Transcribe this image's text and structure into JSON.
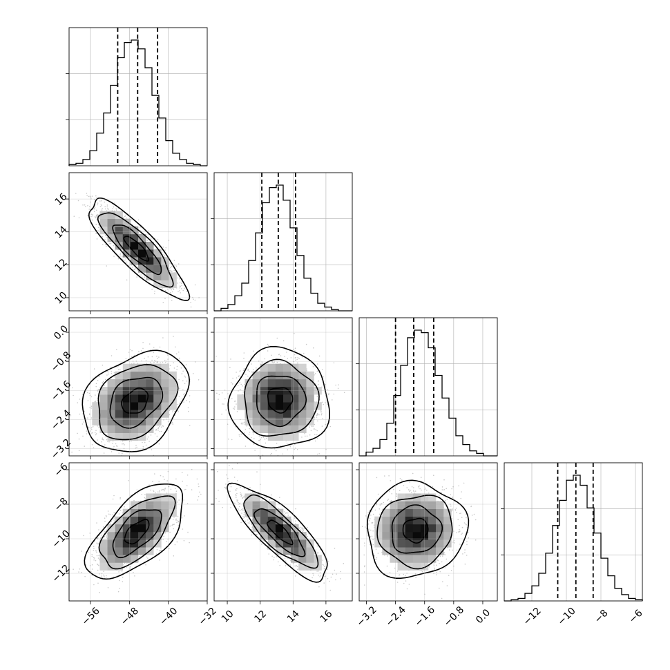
{
  "colors": {
    "ink": "#000000",
    "grid": "#b0b0b0",
    "scatter": "#9a9a9a"
  },
  "chart_data": {
    "type": "corner",
    "dims": [
      {
        "range": [
          -60.4,
          -32
        ],
        "ticks": [
          -56,
          -48,
          -40,
          -32
        ],
        "tick_labels": [
          "−56",
          "−48",
          "−40",
          "−32"
        ],
        "quantiles": [
          -50.4,
          -46.3,
          -42.2
        ],
        "hist_x": [
          -60.4,
          -58.98,
          -57.56,
          -56.14,
          -54.72,
          -53.3,
          -51.88,
          -50.46,
          -49.04,
          -47.62,
          -46.2,
          -44.78,
          -43.36,
          -41.94,
          -40.52,
          -39.1,
          -37.68,
          -36.26,
          -34.84,
          -33.42,
          -32
        ],
        "hist_y": [
          0.01,
          0.02,
          0.05,
          0.12,
          0.26,
          0.42,
          0.64,
          0.86,
          0.98,
          1.0,
          0.93,
          0.78,
          0.56,
          0.38,
          0.2,
          0.1,
          0.05,
          0.02,
          0.01,
          0.0
        ]
      },
      {
        "range": [
          9.2,
          17.6
        ],
        "ticks": [
          10,
          12,
          14,
          16
        ],
        "tick_labels": [
          "10",
          "12",
          "14",
          "16"
        ],
        "quantiles": [
          12.1,
          13.1,
          14.15
        ],
        "hist_x": [
          9.2,
          9.62,
          10.04,
          10.46,
          10.88,
          11.3,
          11.72,
          12.14,
          12.56,
          12.98,
          13.4,
          13.82,
          14.24,
          14.66,
          15.08,
          15.5,
          15.92,
          16.34,
          16.76,
          17.18,
          17.6
        ],
        "hist_y": [
          0.0,
          0.02,
          0.05,
          0.12,
          0.22,
          0.4,
          0.62,
          0.86,
          0.98,
          1.0,
          0.88,
          0.66,
          0.44,
          0.26,
          0.14,
          0.06,
          0.03,
          0.01,
          0.0,
          0.0
        ],
        "y_ticks": [
          10,
          12,
          14,
          16
        ],
        "y_tick_labels": [
          "10",
          "12",
          "14",
          "16"
        ]
      },
      {
        "range": [
          -3.4,
          0.4
        ],
        "ticks": [
          -3.2,
          -2.4,
          -1.6,
          -0.8,
          0.0
        ],
        "tick_labels": [
          "−3.2",
          "−2.4",
          "−1.6",
          "−0.8",
          "0.0"
        ],
        "quantiles": [
          -2.4,
          -1.9,
          -1.35
        ],
        "hist_x": [
          -3.4,
          -3.21,
          -3.02,
          -2.83,
          -2.64,
          -2.45,
          -2.26,
          -2.07,
          -1.88,
          -1.69,
          -1.5,
          -1.31,
          -1.12,
          -0.93,
          -0.74,
          -0.55,
          -0.36,
          -0.17,
          0.02,
          0.21,
          0.4
        ],
        "hist_y": [
          0.0,
          0.03,
          0.06,
          0.13,
          0.26,
          0.48,
          0.72,
          0.94,
          1.0,
          0.98,
          0.86,
          0.64,
          0.46,
          0.3,
          0.16,
          0.09,
          0.04,
          0.02,
          0.0,
          0.0
        ],
        "y_ticks": [
          -3.2,
          -2.4,
          -1.6,
          -0.8,
          0.0
        ],
        "y_tick_labels": [
          "−3.2",
          "−2.4",
          "−1.6",
          "−0.8",
          "0.0"
        ]
      },
      {
        "range": [
          -13.6,
          -5.6
        ],
        "ticks": [
          -12,
          -10,
          -8,
          -6
        ],
        "tick_labels": [
          "−12",
          "−10",
          "−8",
          "−6"
        ],
        "quantiles": [
          -10.5,
          -9.45,
          -8.45
        ],
        "hist_x": [
          -13.6,
          -13.2,
          -12.8,
          -12.4,
          -12.0,
          -11.6,
          -11.2,
          -10.8,
          -10.4,
          -10.0,
          -9.6,
          -9.2,
          -8.8,
          -8.4,
          -8.0,
          -7.6,
          -7.2,
          -6.8,
          -6.4,
          -6.0,
          -5.6
        ],
        "hist_y": [
          0.0,
          0.01,
          0.02,
          0.06,
          0.12,
          0.22,
          0.38,
          0.6,
          0.8,
          0.96,
          1.0,
          0.92,
          0.74,
          0.54,
          0.34,
          0.2,
          0.1,
          0.05,
          0.02,
          0.01
        ],
        "y_ticks": [
          -12,
          -10,
          -8,
          -6
        ],
        "y_tick_labels": [
          "−12",
          "−10",
          "−8",
          "−6"
        ]
      }
    ],
    "pairs": [
      {
        "row": 1,
        "col": 0,
        "mean": [
          -46.5,
          13.0
        ],
        "sd": [
          4.0,
          1.2
        ],
        "rho": -0.85
      },
      {
        "row": 2,
        "col": 0,
        "mean": [
          -46.8,
          -1.9
        ],
        "sd": [
          4.3,
          0.55
        ],
        "rho": 0.3
      },
      {
        "row": 2,
        "col": 1,
        "mean": [
          13.2,
          -1.85
        ],
        "sd": [
          1.2,
          0.55
        ],
        "rho": 0.0
      },
      {
        "row": 3,
        "col": 0,
        "mean": [
          -46.5,
          -9.6
        ],
        "sd": [
          4.0,
          1.1
        ],
        "rho": 0.62
      },
      {
        "row": 3,
        "col": 1,
        "mean": [
          13.2,
          -9.6
        ],
        "sd": [
          1.2,
          1.1
        ],
        "rho": -0.82
      },
      {
        "row": 3,
        "col": 2,
        "mean": [
          -1.85,
          -9.5
        ],
        "sd": [
          0.55,
          1.1
        ],
        "rho": 0.05
      }
    ],
    "contour_levels_sigma": [
      0.5,
      1.0,
      1.5,
      2.0
    ],
    "grid": true,
    "legend": "none"
  }
}
